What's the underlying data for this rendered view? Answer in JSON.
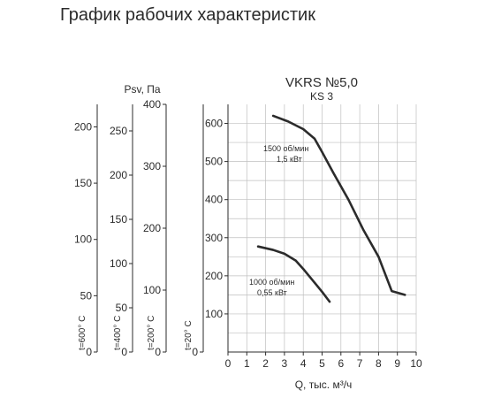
{
  "page": {
    "heading": "График рабочих характеристик"
  },
  "chart_data": {
    "type": "line",
    "title": "VKRS №5,0",
    "subtitle": "KS 3",
    "xlabel": "Q, тыс. м³/ч",
    "ylabel": "Psv, Па",
    "xlim": [
      0,
      10
    ],
    "ylim": [
      0,
      650
    ],
    "x_ticks": [
      0,
      1,
      2,
      3,
      4,
      5,
      6,
      7,
      8,
      9,
      10
    ],
    "y_ticks": [
      100,
      200,
      300,
      400,
      500,
      600
    ],
    "grid": true,
    "series": [
      {
        "name": "1500 об/мин\n1,5 кВт",
        "x": [
          2.4,
          3.2,
          4.0,
          4.6,
          5.0,
          5.6,
          6.4,
          7.2,
          8.0,
          8.7,
          9.4
        ],
        "y": [
          620,
          605,
          585,
          560,
          525,
          470,
          400,
          320,
          250,
          160,
          150
        ]
      },
      {
        "name": "1000 об/мин\n0,55 кВт",
        "x": [
          1.6,
          2.4,
          3.0,
          3.6,
          4.0,
          4.6,
          5.0,
          5.4
        ],
        "y": [
          277,
          268,
          258,
          240,
          218,
          182,
          158,
          132
        ]
      }
    ],
    "series_labels": [
      {
        "line1": "1500 об/мин",
        "line2": "1,5 кВт"
      },
      {
        "line1": "1000 об/мин",
        "line2": "0,55 кВт"
      }
    ],
    "temperature_axes": [
      {
        "label": "t=600° C",
        "max_value": 220,
        "ticks": [
          0,
          50,
          100,
          150,
          200
        ]
      },
      {
        "label": "t=400° C",
        "max_value": 280,
        "ticks": [
          0,
          50,
          100,
          150,
          200,
          250
        ]
      },
      {
        "label": "t=200° C",
        "max_value": 400,
        "ticks": [
          0,
          100,
          200,
          300,
          400
        ]
      },
      {
        "label": "t=20° C",
        "max_value": 650,
        "ticks": [
          0
        ]
      }
    ]
  }
}
